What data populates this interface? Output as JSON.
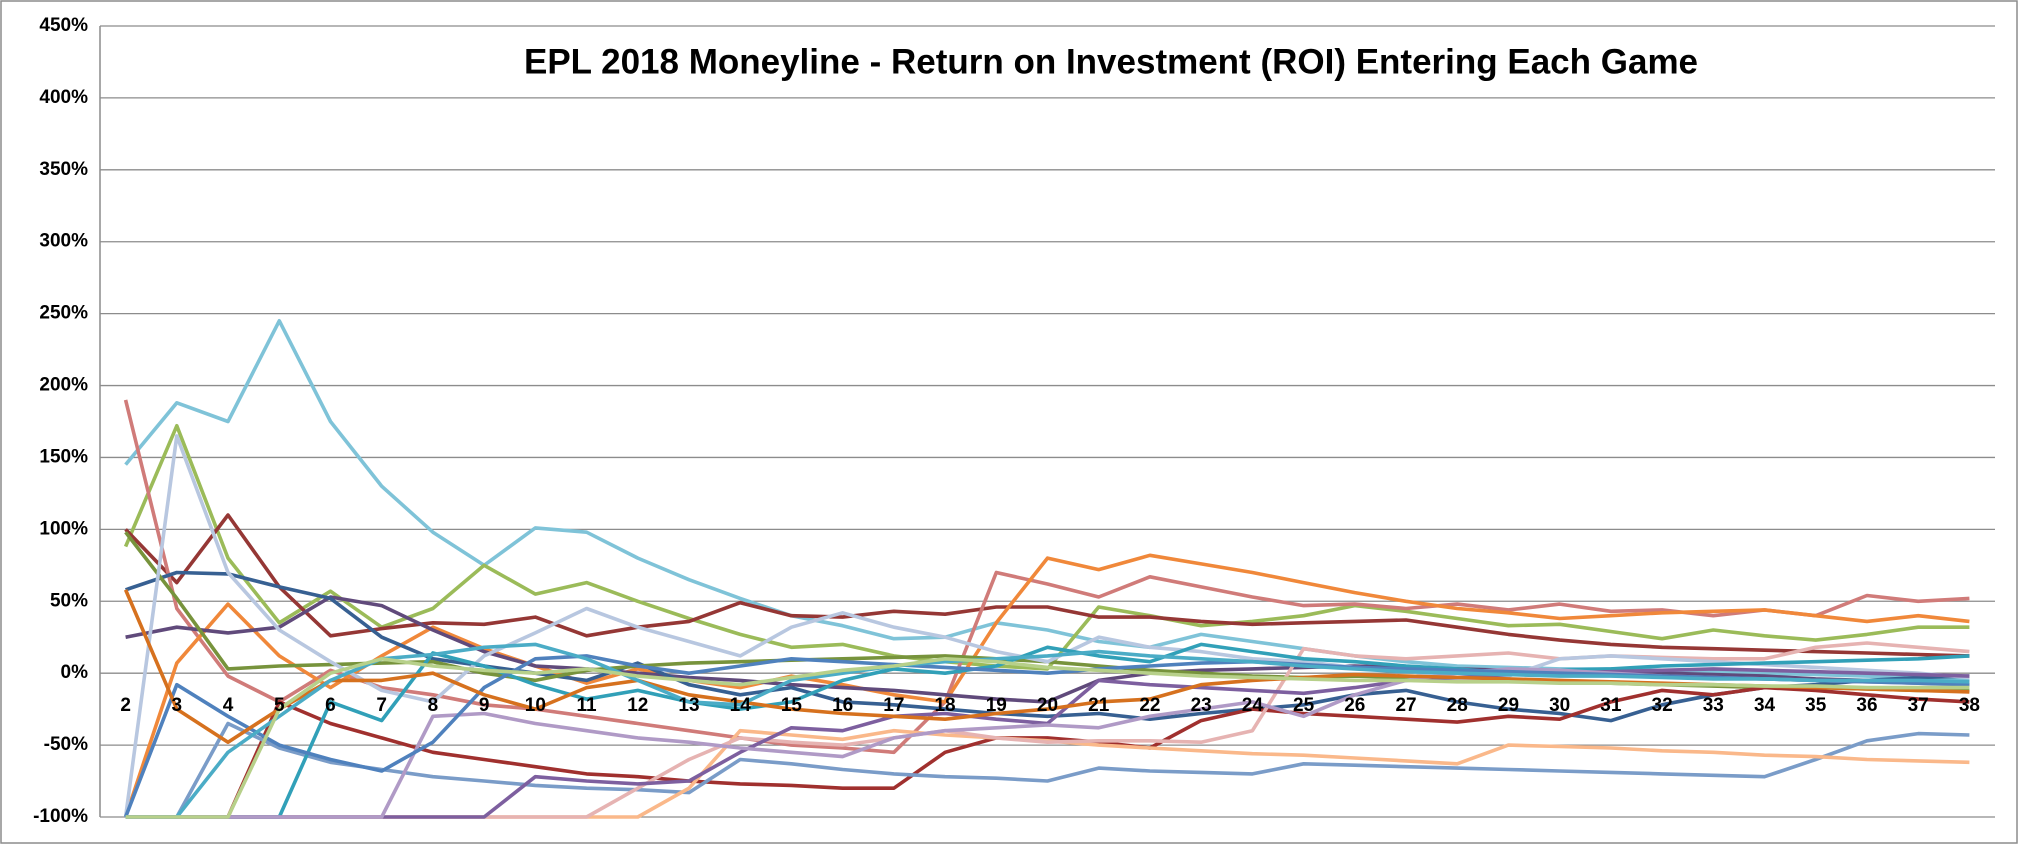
{
  "chart_data": {
    "type": "line",
    "title": "EPL 2018 Moneyline - Return on Investment (ROI) Entering Each Game",
    "categories": [
      "2",
      "3",
      "4",
      "5",
      "6",
      "7",
      "8",
      "9",
      "10",
      "11",
      "12",
      "13",
      "14",
      "15",
      "16",
      "17",
      "18",
      "19",
      "20",
      "21",
      "22",
      "23",
      "24",
      "25",
      "26",
      "27",
      "28",
      "29",
      "30",
      "31",
      "32",
      "33",
      "34",
      "35",
      "36",
      "37",
      "38"
    ],
    "ylim": [
      -100,
      450
    ],
    "yticks": [
      {
        "value": -100,
        "label": "-100%"
      },
      {
        "value": -50,
        "label": "-50%"
      },
      {
        "value": 0,
        "label": "0%"
      },
      {
        "value": 50,
        "label": "50%"
      },
      {
        "value": 100,
        "label": "100%"
      },
      {
        "value": 150,
        "label": "150%"
      },
      {
        "value": 200,
        "label": "200%"
      },
      {
        "value": 250,
        "label": "250%"
      },
      {
        "value": 300,
        "label": "300%"
      },
      {
        "value": 350,
        "label": "350%"
      },
      {
        "value": 400,
        "label": "400%"
      },
      {
        "value": 450,
        "label": "450%"
      }
    ],
    "grid": true,
    "series": [
      {
        "color": "#7fc3d8",
        "values": [
          145,
          188,
          175,
          245,
          175,
          130,
          98,
          75,
          101,
          98,
          80,
          65,
          52,
          40,
          33,
          24,
          25,
          35,
          30,
          22,
          18,
          27,
          22,
          17,
          12,
          8,
          5,
          4,
          3,
          3,
          2,
          1,
          0,
          -1,
          -2,
          -3,
          -5
        ]
      },
      {
        "color": "#9bbb59",
        "values": [
          88,
          172,
          80,
          35,
          57,
          32,
          45,
          75,
          55,
          63,
          50,
          38,
          27,
          18,
          20,
          12,
          8,
          5,
          3,
          46,
          40,
          33,
          36,
          40,
          47,
          43,
          38,
          33,
          34,
          29,
          24,
          30,
          26,
          23,
          27,
          32,
          32
        ]
      },
      {
        "color": "#953735",
        "values": [
          100,
          63,
          110,
          60,
          26,
          31,
          35,
          34,
          39,
          26,
          32,
          36,
          49,
          40,
          39,
          43,
          41,
          46,
          46,
          39,
          39,
          36,
          34,
          35,
          36,
          37,
          32,
          27,
          23,
          20,
          18,
          17,
          16,
          15,
          14,
          13,
          12
        ]
      },
      {
        "color": "#d07b79",
        "values": [
          190,
          45,
          -2,
          -20,
          2,
          -10,
          -15,
          -22,
          -25,
          -30,
          -35,
          -40,
          -45,
          -50,
          -52,
          -55,
          -20,
          70,
          62,
          53,
          67,
          60,
          53,
          47,
          48,
          45,
          48,
          44,
          48,
          43,
          44,
          40,
          44,
          40,
          54,
          50,
          52
        ]
      },
      {
        "color": "#f0883a",
        "values": [
          -100,
          7,
          48,
          12,
          -10,
          12,
          32,
          17,
          5,
          -7,
          3,
          -5,
          -10,
          -2,
          -8,
          -15,
          -20,
          35,
          80,
          72,
          82,
          76,
          70,
          63,
          56,
          50,
          45,
          42,
          38,
          40,
          42,
          43,
          44,
          40,
          36,
          40,
          36
        ]
      },
      {
        "color": "#604a7b",
        "values": [
          25,
          32,
          28,
          32,
          53,
          47,
          30,
          15,
          5,
          3,
          0,
          -3,
          -5,
          -8,
          -10,
          -12,
          -15,
          -18,
          -20,
          -5,
          0,
          2,
          3,
          4,
          5,
          4,
          3,
          2,
          2,
          1,
          0,
          -1,
          -2,
          -4,
          -5,
          -6,
          -8
        ]
      },
      {
        "color": "#376092",
        "values": [
          58,
          70,
          69,
          60,
          52,
          25,
          10,
          5,
          0,
          -5,
          7,
          -8,
          -15,
          -10,
          -20,
          -22,
          -25,
          -28,
          -30,
          -28,
          -32,
          -28,
          -25,
          -22,
          -15,
          -12,
          -20,
          -25,
          -28,
          -33,
          -22,
          -15,
          -10,
          -8,
          -5,
          -3,
          -2
        ]
      },
      {
        "color": "#77933c",
        "values": [
          98,
          52,
          3,
          5,
          6,
          7,
          8,
          0,
          -5,
          2,
          5,
          7,
          8,
          9,
          10,
          11,
          12,
          10,
          8,
          5,
          2,
          0,
          -2,
          -3,
          -2,
          -3,
          -4,
          -5,
          -6,
          -7,
          -8,
          -9,
          -10,
          -10,
          -11,
          -12,
          -12
        ]
      },
      {
        "color": "#a0302e",
        "values": [
          -100,
          -100,
          -100,
          -20,
          -35,
          -45,
          -55,
          -60,
          -65,
          -70,
          -72,
          -75,
          -77,
          -78,
          -80,
          -80,
          -55,
          -45,
          -45,
          -48,
          -52,
          -33,
          -25,
          -28,
          -30,
          -32,
          -34,
          -30,
          -32,
          -20,
          -12,
          -15,
          -10,
          -12,
          -15,
          -18,
          -20
        ]
      },
      {
        "color": "#7a9cc8",
        "values": [
          -100,
          -100,
          -35,
          -52,
          -62,
          -67,
          -72,
          -75,
          -78,
          -80,
          -81,
          -83,
          -60,
          -63,
          -67,
          -70,
          -72,
          -73,
          -75,
          -66,
          -68,
          -69,
          -70,
          -63,
          -64,
          -65,
          -66,
          -67,
          -68,
          -69,
          -70,
          -71,
          -72,
          -60,
          -47,
          -42,
          -43
        ]
      },
      {
        "color": "#fab88a",
        "values": [
          -100,
          -100,
          -100,
          -100,
          -100,
          -100,
          -100,
          -100,
          -100,
          -100,
          -100,
          -80,
          -40,
          -43,
          -46,
          -40,
          -43,
          -45,
          -47,
          -50,
          -52,
          -54,
          -56,
          -57,
          -59,
          -61,
          -63,
          -50,
          -51,
          -52,
          -54,
          -55,
          -57,
          -58,
          -60,
          -61,
          -62
        ]
      },
      {
        "color": "#e6b3b2",
        "values": [
          -100,
          -100,
          -100,
          -100,
          -100,
          -100,
          -100,
          -100,
          -100,
          -100,
          -80,
          -60,
          -45,
          -48,
          -50,
          -45,
          -40,
          -45,
          -48,
          -47,
          -47,
          -48,
          -40,
          17,
          12,
          10,
          12,
          14,
          10,
          12,
          11,
          10,
          10,
          18,
          21,
          18,
          15
        ]
      },
      {
        "color": "#b8c7e0",
        "values": [
          -100,
          165,
          70,
          30,
          8,
          -12,
          -20,
          12,
          28,
          45,
          32,
          22,
          12,
          32,
          42,
          32,
          25,
          15,
          8,
          25,
          18,
          15,
          10,
          8,
          4,
          2,
          -5,
          -2,
          10,
          12,
          10,
          8,
          6,
          4,
          2,
          0,
          -3
        ]
      },
      {
        "color": "#31a0b8",
        "values": [
          -100,
          -100,
          -100,
          -100,
          -20,
          -33,
          14,
          5,
          -8,
          -18,
          -12,
          -20,
          -25,
          -20,
          -5,
          3,
          0,
          5,
          18,
          12,
          8,
          20,
          15,
          10,
          8,
          5,
          3,
          0,
          2,
          3,
          5,
          6,
          7,
          8,
          9,
          10,
          12
        ]
      },
      {
        "color": "#7d5f9f",
        "values": [
          -100,
          -100,
          -100,
          -100,
          -100,
          -100,
          -100,
          -100,
          -72,
          -75,
          -77,
          -75,
          -55,
          -38,
          -40,
          -30,
          -28,
          -32,
          -35,
          -5,
          -8,
          -10,
          -12,
          -14,
          -10,
          -5,
          -3,
          -1,
          0,
          1,
          2,
          3,
          2,
          1,
          0,
          -1,
          -2
        ]
      },
      {
        "color": "#b09ac6",
        "values": [
          -100,
          -100,
          -100,
          -100,
          -100,
          -100,
          -30,
          -28,
          -35,
          -40,
          -45,
          -48,
          -52,
          -55,
          -58,
          -45,
          -40,
          -38,
          -36,
          -38,
          -30,
          -25,
          -20,
          -30,
          -15,
          -5,
          0,
          3,
          2,
          0,
          -2,
          -3,
          -4,
          -5,
          -6,
          -7,
          -8
        ]
      },
      {
        "color": "#4f81bd",
        "values": [
          -100,
          -8,
          -30,
          -50,
          -60,
          -68,
          -48,
          -10,
          10,
          12,
          5,
          0,
          5,
          10,
          8,
          6,
          4,
          2,
          0,
          3,
          5,
          7,
          8,
          6,
          4,
          3,
          2,
          1,
          0,
          -1,
          -2,
          -3,
          -4,
          -5,
          -6,
          -7,
          -8
        ]
      },
      {
        "color": "#d6711e",
        "values": [
          58,
          -25,
          -48,
          -25,
          -5,
          -5,
          0,
          -15,
          -25,
          -10,
          -5,
          -15,
          -20,
          -25,
          -28,
          -30,
          -32,
          -28,
          -25,
          -20,
          -18,
          -8,
          -5,
          -3,
          -1,
          -2,
          -3,
          -4,
          -5,
          -6,
          -7,
          -8,
          -9,
          -10,
          -11,
          -12,
          -13
        ]
      },
      {
        "color": "#4bacc6",
        "values": [
          -100,
          -100,
          -55,
          -30,
          -5,
          10,
          13,
          18,
          20,
          10,
          -5,
          -20,
          -22,
          -5,
          0,
          5,
          8,
          10,
          12,
          15,
          12,
          10,
          8,
          5,
          3,
          1,
          0,
          -1,
          -2,
          -2,
          -3,
          -4,
          -4,
          -5,
          -5,
          -5,
          -6
        ]
      },
      {
        "color": "#b7d08a",
        "values": [
          -100,
          -100,
          -100,
          -25,
          0,
          10,
          5,
          2,
          0,
          3,
          -2,
          -5,
          -8,
          -3,
          2,
          5,
          10,
          8,
          4,
          2,
          0,
          -2,
          -3,
          -4,
          -5,
          -5,
          -6,
          -6,
          -7,
          -7,
          -8,
          -8,
          -9,
          -9,
          -10,
          -10,
          -10
        ]
      }
    ]
  }
}
